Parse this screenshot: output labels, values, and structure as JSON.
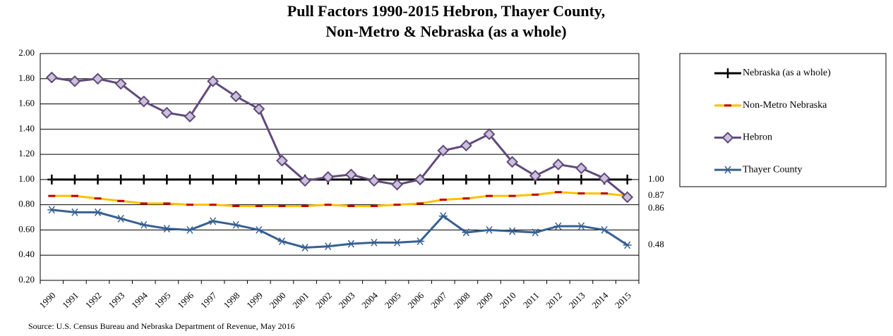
{
  "chart_data": {
    "type": "line",
    "title": "Pull Factors 1990-2015 Hebron, Thayer County,",
    "subtitle": "Non-Metro & Nebraska (as a whole)",
    "source": "Source: U.S. Census Bureau and Nebraska Department of Revenue, May 2016",
    "categories": [
      "1990",
      "1991",
      "1992",
      "1993",
      "1994",
      "1995",
      "1996",
      "1997",
      "1998",
      "1999",
      "2000",
      "2001",
      "2002",
      "2003",
      "2004",
      "2005",
      "2006",
      "2007",
      "2008",
      "2009",
      "2010",
      "2011",
      "2012",
      "2013",
      "2014",
      "2015"
    ],
    "series": [
      {
        "name": "Nebraska (as a whole)",
        "color": "#000000",
        "marker": "plus",
        "marker_color": "#000000",
        "values": [
          1,
          1,
          1,
          1,
          1,
          1,
          1,
          1,
          1,
          1,
          1,
          1,
          1,
          1,
          1,
          1,
          1,
          1,
          1,
          1,
          1,
          1,
          1,
          1,
          1,
          1
        ],
        "value_labels": [
          null,
          null,
          null,
          null,
          null,
          null,
          null,
          null,
          null,
          null,
          null,
          null,
          null,
          null,
          null,
          null,
          null,
          null,
          null,
          null,
          null,
          null,
          null,
          null,
          null,
          "1.00"
        ]
      },
      {
        "name": "Non-Metro Nebraska",
        "color": "#ffc000",
        "marker": "dash",
        "marker_color": "#c00000",
        "values": [
          0.87,
          0.87,
          0.85,
          0.83,
          0.81,
          0.81,
          0.8,
          0.8,
          0.79,
          0.79,
          0.79,
          0.79,
          0.8,
          0.79,
          0.79,
          0.8,
          0.81,
          0.84,
          0.85,
          0.87,
          0.87,
          0.88,
          0.9,
          0.89,
          0.89,
          0.87
        ],
        "value_labels": [
          null,
          null,
          null,
          null,
          null,
          null,
          null,
          null,
          null,
          null,
          null,
          null,
          null,
          null,
          null,
          null,
          null,
          null,
          null,
          null,
          null,
          null,
          null,
          null,
          null,
          "0.87"
        ]
      },
      {
        "name": "Hebron",
        "color": "#604a7b",
        "marker": "diamond",
        "marker_color": "#ccc0da",
        "values": [
          1.81,
          1.78,
          1.8,
          1.76,
          1.62,
          1.53,
          1.5,
          1.78,
          1.66,
          1.56,
          1.15,
          0.99,
          1.02,
          1.04,
          0.99,
          0.96,
          1.0,
          1.23,
          1.27,
          1.36,
          1.14,
          1.03,
          1.12,
          1.09,
          1.01,
          0.86
        ],
        "value_labels": [
          null,
          null,
          null,
          null,
          null,
          null,
          null,
          null,
          null,
          null,
          null,
          null,
          null,
          null,
          null,
          null,
          null,
          null,
          null,
          null,
          null,
          null,
          null,
          null,
          null,
          "0.86"
        ]
      },
      {
        "name": "Thayer County",
        "color": "#376092",
        "marker": "asterisk",
        "marker_color": "#376092",
        "values": [
          0.76,
          0.74,
          0.74,
          0.69,
          0.64,
          0.61,
          0.6,
          0.67,
          0.64,
          0.6,
          0.51,
          0.46,
          0.47,
          0.49,
          0.5,
          0.5,
          0.51,
          0.71,
          0.58,
          0.6,
          0.59,
          0.58,
          0.63,
          0.63,
          0.6,
          0.48
        ],
        "value_labels": [
          null,
          null,
          null,
          null,
          null,
          null,
          null,
          null,
          null,
          null,
          null,
          null,
          null,
          null,
          null,
          null,
          null,
          null,
          null,
          null,
          null,
          null,
          null,
          null,
          null,
          "0.48"
        ]
      }
    ],
    "ylim": [
      0.2,
      2.0
    ],
    "yticks": [
      {
        "value": 0.2,
        "label": "0.20"
      },
      {
        "value": 0.4,
        "label": "0.40"
      },
      {
        "value": 0.6,
        "label": "0.60"
      },
      {
        "value": 0.8,
        "label": "0.80"
      },
      {
        "value": 1.0,
        "label": "1.00"
      },
      {
        "value": 1.2,
        "label": "1.20"
      },
      {
        "value": 1.4,
        "label": "1.40"
      },
      {
        "value": 1.6,
        "label": "1.60"
      },
      {
        "value": 1.8,
        "label": "1.80"
      },
      {
        "value": 2.0,
        "label": "2.00"
      }
    ],
    "grid": true,
    "legend": "right"
  }
}
